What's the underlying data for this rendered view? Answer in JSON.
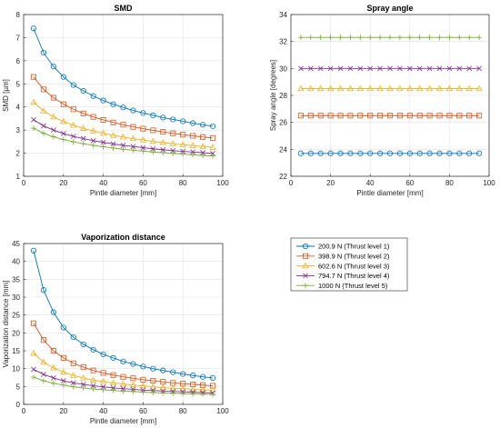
{
  "chart_data": [
    {
      "type": "line",
      "title": "SMD",
      "xlabel": "Pintle diameter [mm]",
      "ylabel": "SMD [µm]",
      "xlim": [
        0,
        100
      ],
      "ylim": [
        1,
        8
      ],
      "xticks": [
        0,
        20,
        40,
        60,
        80,
        100
      ],
      "yticks": [
        1,
        2,
        3,
        4,
        5,
        6,
        7,
        8
      ],
      "grid": true,
      "x": [
        5,
        10,
        15,
        20,
        25,
        30,
        35,
        40,
        45,
        50,
        55,
        60,
        65,
        70,
        75,
        80,
        85,
        90,
        95
      ],
      "series": [
        {
          "name": "200.9 N (Thrust level 1)",
          "values": [
            7.4,
            6.35,
            5.75,
            5.3,
            4.95,
            4.7,
            4.47,
            4.28,
            4.12,
            3.98,
            3.85,
            3.74,
            3.64,
            3.54,
            3.46,
            3.38,
            3.3,
            3.23,
            3.17
          ]
        },
        {
          "name": "398.9 N (Thrust level 2)",
          "values": [
            5.3,
            4.76,
            4.4,
            4.12,
            3.9,
            3.72,
            3.57,
            3.44,
            3.33,
            3.23,
            3.14,
            3.06,
            2.99,
            2.92,
            2.86,
            2.8,
            2.75,
            2.7,
            2.66
          ]
        },
        {
          "name": "602.6 N (Thrust level 3)",
          "values": [
            4.2,
            3.83,
            3.57,
            3.37,
            3.21,
            3.07,
            2.96,
            2.86,
            2.77,
            2.7,
            2.63,
            2.57,
            2.51,
            2.46,
            2.41,
            2.37,
            2.33,
            2.29,
            2.25
          ]
        },
        {
          "name": "794.7 N (Thrust level 4)",
          "values": [
            3.45,
            3.18,
            3.0,
            2.85,
            2.73,
            2.63,
            2.54,
            2.47,
            2.4,
            2.34,
            2.29,
            2.24,
            2.19,
            2.15,
            2.11,
            2.08,
            2.05,
            2.02,
            1.99
          ]
        },
        {
          "name": "1000 N (Thrust level 5)",
          "values": [
            3.08,
            2.86,
            2.71,
            2.59,
            2.49,
            2.41,
            2.34,
            2.28,
            2.22,
            2.17,
            2.13,
            2.09,
            2.05,
            2.02,
            1.99,
            1.96,
            1.93,
            1.9,
            1.88
          ]
        }
      ]
    },
    {
      "type": "line",
      "title": "Spray angle",
      "xlabel": "Pintle diameter [mm]",
      "ylabel": "Spray angle [degrees]",
      "xlim": [
        0,
        100
      ],
      "ylim": [
        22,
        34
      ],
      "xticks": [
        0,
        20,
        40,
        60,
        80,
        100
      ],
      "yticks": [
        22,
        24,
        26,
        28,
        30,
        32,
        34
      ],
      "grid": true,
      "x": [
        5,
        10,
        15,
        20,
        25,
        30,
        35,
        40,
        45,
        50,
        55,
        60,
        65,
        70,
        75,
        80,
        85,
        90,
        95
      ],
      "series": [
        {
          "name": "200.9 N (Thrust level 1)",
          "values": [
            23.7,
            23.7,
            23.7,
            23.7,
            23.7,
            23.7,
            23.7,
            23.7,
            23.7,
            23.7,
            23.7,
            23.7,
            23.7,
            23.7,
            23.7,
            23.7,
            23.7,
            23.7,
            23.7
          ]
        },
        {
          "name": "398.9 N (Thrust level 2)",
          "values": [
            26.5,
            26.5,
            26.5,
            26.5,
            26.5,
            26.5,
            26.5,
            26.5,
            26.5,
            26.5,
            26.5,
            26.5,
            26.5,
            26.5,
            26.5,
            26.5,
            26.5,
            26.5,
            26.5
          ]
        },
        {
          "name": "602.6 N (Thrust level 3)",
          "values": [
            28.5,
            28.5,
            28.5,
            28.5,
            28.5,
            28.5,
            28.5,
            28.5,
            28.5,
            28.5,
            28.5,
            28.5,
            28.5,
            28.5,
            28.5,
            28.5,
            28.5,
            28.5,
            28.5
          ]
        },
        {
          "name": "794.7 N (Thrust level 4)",
          "values": [
            30.0,
            30.0,
            30.0,
            30.0,
            30.0,
            30.0,
            30.0,
            30.0,
            30.0,
            30.0,
            30.0,
            30.0,
            30.0,
            30.0,
            30.0,
            30.0,
            30.0,
            30.0,
            30.0
          ]
        },
        {
          "name": "1000 N (Thrust level 5)",
          "values": [
            32.3,
            32.3,
            32.3,
            32.3,
            32.3,
            32.3,
            32.3,
            32.3,
            32.3,
            32.3,
            32.3,
            32.3,
            32.3,
            32.3,
            32.3,
            32.3,
            32.3,
            32.3,
            32.3
          ]
        }
      ]
    },
    {
      "type": "line",
      "title": "Vaporization distance",
      "xlabel": "Pintle diameter [mm]",
      "ylabel": "Vaporization distance [mm]",
      "xlim": [
        0,
        100
      ],
      "ylim": [
        0,
        45
      ],
      "xticks": [
        0,
        20,
        40,
        60,
        80,
        100
      ],
      "yticks": [
        0,
        5,
        10,
        15,
        20,
        25,
        30,
        35,
        40,
        45
      ],
      "grid": true,
      "x": [
        5,
        10,
        15,
        20,
        25,
        30,
        35,
        40,
        45,
        50,
        55,
        60,
        65,
        70,
        75,
        80,
        85,
        90,
        95
      ],
      "series": [
        {
          "name": "200.9 N (Thrust level 1)",
          "values": [
            43.0,
            32.0,
            25.8,
            21.5,
            18.8,
            16.8,
            15.3,
            14.0,
            13.0,
            12.0,
            11.3,
            10.6,
            10.0,
            9.5,
            9.0,
            8.5,
            8.1,
            7.7,
            7.4
          ]
        },
        {
          "name": "398.9 N (Thrust level 2)",
          "values": [
            22.7,
            18.0,
            15.0,
            13.0,
            11.5,
            10.4,
            9.5,
            8.8,
            8.2,
            7.7,
            7.3,
            6.9,
            6.6,
            6.3,
            6.0,
            5.8,
            5.6,
            5.4,
            5.2
          ]
        },
        {
          "name": "602.6 N (Thrust level 3)",
          "values": [
            14.3,
            11.8,
            10.2,
            9.0,
            8.1,
            7.4,
            6.8,
            6.4,
            6.0,
            5.7,
            5.4,
            5.2,
            4.9,
            4.7,
            4.5,
            4.4,
            4.2,
            4.1,
            4.0
          ]
        },
        {
          "name": "794.7 N (Thrust level 4)",
          "values": [
            9.8,
            8.4,
            7.4,
            6.6,
            6.0,
            5.6,
            5.2,
            4.9,
            4.6,
            4.4,
            4.2,
            4.0,
            3.9,
            3.7,
            3.6,
            3.5,
            3.4,
            3.3,
            3.2
          ]
        },
        {
          "name": "1000 N (Thrust level 5)",
          "values": [
            7.6,
            6.6,
            5.9,
            5.4,
            4.9,
            4.6,
            4.3,
            4.1,
            3.9,
            3.7,
            3.6,
            3.4,
            3.3,
            3.2,
            3.1,
            3.0,
            2.9,
            2.85,
            2.8
          ]
        }
      ]
    }
  ],
  "legend": {
    "placement": "lower-right",
    "entries": [
      {
        "label": "200.9 N (Thrust level 1)",
        "color": "#0072BD",
        "marker": "circle"
      },
      {
        "label": "398.9 N (Thrust level 2)",
        "color": "#D95319",
        "marker": "square"
      },
      {
        "label": "602.6 N (Thrust level 3)",
        "color": "#EDB120",
        "marker": "triangle"
      },
      {
        "label": "794.7 N (Thrust level 4)",
        "color": "#7E2F8E",
        "marker": "cross"
      },
      {
        "label": "1000 N (Thrust level 5)",
        "color": "#77AC30",
        "marker": "plus"
      }
    ]
  }
}
